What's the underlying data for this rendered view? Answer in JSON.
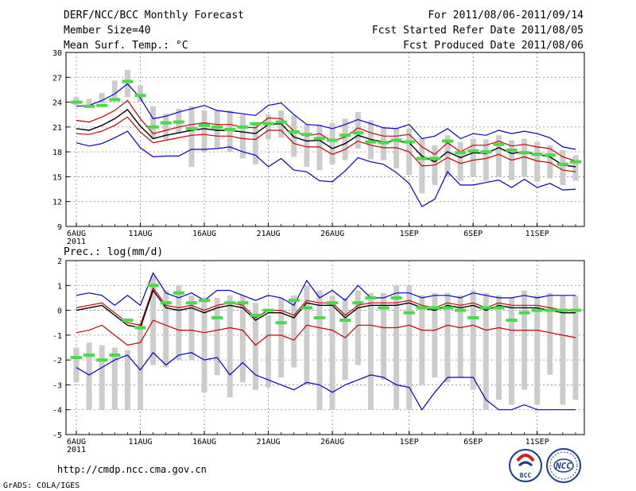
{
  "header": {
    "title": "DERF/NCC/BCC Monthly Forecast",
    "member_size": "Member Size=40",
    "variable": "Mean Surf. Temp.: °C",
    "period": "For 2011/08/06-2011/09/14",
    "started": "Fcst Started Refer Date 2011/08/05",
    "produced": "Fcst Produced Date 2011/08/06"
  },
  "footer": {
    "url": "http://cmdp.ncc.cma.gov.cn",
    "credit": "GrADS: COLA/IGES",
    "logo_bcc": "BCC",
    "logo_ncc": "NCC"
  },
  "colors": {
    "box": "#cccccc",
    "median": "#44dd44",
    "envelope": "#0000cc",
    "spread": "#cc0000",
    "mean": "#000000",
    "grid": "#888888"
  },
  "chart_data": [
    {
      "type": "line",
      "title": "Mean Surf. Temp.: °C",
      "ylim": [
        9,
        30
      ],
      "yticks": [
        "9",
        "12",
        "15",
        "18",
        "21",
        "24",
        "27",
        "30"
      ],
      "xticks": [
        {
          "day": 0,
          "label": "6AUG",
          "sub": "2011"
        },
        {
          "day": 5,
          "label": "11AUG"
        },
        {
          "day": 10,
          "label": "16AUG"
        },
        {
          "day": 15,
          "label": "21AUG"
        },
        {
          "day": 20,
          "label": "26AUG"
        },
        {
          "day": 26,
          "label": "1SEP"
        },
        {
          "day": 31,
          "label": "6SEP"
        },
        {
          "day": 36,
          "label": "11SEP"
        }
      ],
      "days": [
        0,
        1,
        2,
        3,
        4,
        5,
        6,
        7,
        8,
        9,
        10,
        11,
        12,
        13,
        14,
        15,
        16,
        17,
        18,
        19,
        20,
        21,
        22,
        23,
        24,
        25,
        26,
        27,
        28,
        29,
        30,
        31,
        32,
        33,
        34,
        35,
        36,
        37,
        38,
        39
      ],
      "max": [
        23.5,
        23.6,
        24.2,
        25.0,
        26.2,
        24.5,
        22.0,
        22.3,
        22.8,
        23.2,
        23.6,
        23.0,
        22.8,
        22.6,
        22.4,
        23.6,
        23.9,
        22.5,
        21.3,
        21.2,
        20.8,
        21.3,
        21.9,
        21.4,
        20.9,
        20.8,
        21.3,
        19.6,
        19.9,
        20.8,
        19.6,
        20.2,
        20.0,
        20.6,
        20.2,
        20.5,
        20.2,
        19.7,
        18.6,
        18.3
      ],
      "upper": [
        21.8,
        21.6,
        22.2,
        23.0,
        24.2,
        22.0,
        20.2,
        20.6,
        21.0,
        21.3,
        21.5,
        21.3,
        21.3,
        21.0,
        20.9,
        22.1,
        22.0,
        20.5,
        19.9,
        20.2,
        19.3,
        19.8,
        20.9,
        20.3,
        19.9,
        19.9,
        20.1,
        18.6,
        17.7,
        19.1,
        18.0,
        18.8,
        18.8,
        19.3,
        18.7,
        18.9,
        18.6,
        18.4,
        17.4,
        16.9
      ],
      "mean": [
        20.8,
        20.6,
        21.2,
        22.0,
        23.1,
        21.1,
        19.6,
        20.0,
        20.3,
        20.6,
        20.8,
        20.6,
        20.6,
        20.4,
        20.2,
        21.3,
        21.4,
        19.8,
        19.3,
        19.4,
        18.4,
        19.0,
        20.0,
        19.5,
        19.2,
        19.3,
        19.1,
        17.5,
        16.8,
        18.0,
        17.3,
        17.9,
        17.8,
        18.5,
        17.8,
        18.0,
        17.7,
        17.4,
        16.4,
        16.2
      ],
      "lower": [
        20.2,
        20.1,
        20.5,
        21.2,
        22.2,
        20.4,
        19.1,
        19.4,
        19.7,
        20.0,
        20.1,
        19.9,
        19.9,
        19.6,
        19.5,
        20.6,
        20.6,
        19.0,
        18.6,
        18.6,
        17.7,
        18.3,
        19.3,
        18.8,
        18.5,
        18.5,
        18.0,
        16.3,
        16.4,
        17.3,
        16.6,
        17.0,
        17.2,
        17.7,
        17.0,
        17.4,
        16.9,
        16.7,
        15.8,
        15.6
      ],
      "min": [
        19.1,
        18.7,
        19.0,
        19.7,
        20.5,
        18.5,
        17.4,
        17.5,
        17.5,
        18.3,
        18.3,
        18.4,
        18.6,
        18.0,
        17.6,
        16.2,
        17.2,
        15.8,
        15.6,
        14.5,
        14.4,
        15.7,
        17.3,
        16.8,
        16.5,
        15.5,
        14.2,
        11.4,
        12.3,
        15.6,
        14.0,
        14.0,
        14.3,
        14.6,
        13.7,
        14.7,
        13.7,
        14.2,
        13.4,
        13.5
      ],
      "box_hi": [
        24.6,
        24.4,
        25.1,
        26.6,
        27.9,
        26.0,
        23.5,
        22.6,
        23.2,
        23.5,
        23.0,
        23.0,
        23.0,
        22.5,
        21.5,
        22.5,
        23.0,
        22.4,
        21.3,
        21.3,
        21.5,
        22.0,
        22.8,
        21.8,
        21.0,
        20.8,
        20.8,
        19.6,
        18.8,
        20.0,
        19.2,
        19.6,
        19.5,
        20.0,
        19.4,
        19.6,
        19.2,
        18.8,
        18.2,
        17.6
      ],
      "box_lo": [
        23.6,
        23.5,
        23.9,
        24.5,
        24.6,
        24.0,
        19.5,
        19.5,
        20.2,
        16.2,
        18.0,
        18.5,
        18.0,
        17.2,
        16.5,
        19.5,
        19.7,
        17.4,
        16.2,
        15.8,
        16.5,
        17.0,
        18.4,
        17.1,
        17.0,
        16.0,
        15.2,
        13.0,
        14.0,
        15.0,
        14.5,
        15.0,
        14.5,
        15.0,
        14.6,
        15.0,
        14.4,
        14.8,
        14.0,
        14.5
      ],
      "median": [
        24.0,
        23.5,
        23.6,
        24.3,
        26.5,
        24.8,
        21.0,
        21.5,
        21.6,
        20.8,
        21.2,
        21.0,
        20.7,
        21.0,
        21.4,
        21.4,
        21.6,
        20.4,
        20.1,
        19.6,
        19.4,
        20.0,
        20.3,
        19.2,
        19.1,
        19.4,
        19.2,
        17.2,
        17.2,
        19.3,
        17.9,
        18.1,
        18.0,
        18.9,
        18.2,
        17.9,
        17.7,
        17.6,
        16.5,
        16.8
      ]
    },
    {
      "type": "line",
      "title": "Prec.: log(mm/d)",
      "ylim": [
        -5,
        2
      ],
      "yticks": [
        "-5",
        "-4",
        "-3",
        "-2",
        "-1",
        "0",
        "1",
        "2"
      ],
      "xticks": [
        {
          "day": 0,
          "label": "6AUG",
          "sub": "2011"
        },
        {
          "day": 5,
          "label": "11AUG"
        },
        {
          "day": 10,
          "label": "16AUG"
        },
        {
          "day": 15,
          "label": "21AUG"
        },
        {
          "day": 20,
          "label": "26AUG"
        },
        {
          "day": 26,
          "label": "1SEP"
        },
        {
          "day": 31,
          "label": "6SEP"
        },
        {
          "day": 36,
          "label": "11SEP"
        }
      ],
      "days": [
        0,
        1,
        2,
        3,
        4,
        5,
        6,
        7,
        8,
        9,
        10,
        11,
        12,
        13,
        14,
        15,
        16,
        17,
        18,
        19,
        20,
        21,
        22,
        23,
        24,
        25,
        26,
        27,
        28,
        29,
        30,
        31,
        32,
        33,
        34,
        35,
        36,
        37,
        38,
        39
      ],
      "max": [
        0.6,
        0.7,
        0.6,
        0.2,
        0.6,
        0.2,
        1.5,
        0.7,
        0.5,
        0.7,
        0.4,
        0.8,
        0.8,
        0.6,
        0.4,
        0.6,
        0.5,
        0.2,
        1.2,
        0.5,
        0.8,
        0.4,
        1.0,
        0.5,
        0.5,
        0.7,
        0.7,
        0.5,
        0.6,
        0.6,
        0.5,
        0.7,
        0.6,
        0.5,
        0.5,
        0.6,
        0.5,
        0.6,
        0.6,
        0.6
      ],
      "upper": [
        0.1,
        0.2,
        0.3,
        -0.1,
        -0.5,
        -0.6,
        0.9,
        0.2,
        0.1,
        0.2,
        0.0,
        0.2,
        0.3,
        0.2,
        -0.3,
        0.0,
        0.0,
        -0.2,
        0.4,
        0.3,
        0.3,
        -0.2,
        0.2,
        0.3,
        0.3,
        0.3,
        0.4,
        0.2,
        0.1,
        0.3,
        0.2,
        0.3,
        0.1,
        0.3,
        0.2,
        0.2,
        0.2,
        0.1,
        0.0,
        0.0
      ],
      "mean": [
        0.0,
        0.1,
        0.2,
        -0.2,
        -0.6,
        -0.7,
        0.8,
        0.1,
        0.0,
        0.1,
        -0.1,
        0.1,
        0.2,
        0.1,
        -0.4,
        -0.1,
        -0.1,
        -0.3,
        0.3,
        0.2,
        0.2,
        -0.3,
        0.1,
        0.2,
        0.2,
        0.2,
        0.3,
        0.1,
        0.0,
        0.2,
        0.1,
        0.2,
        0.0,
        0.2,
        0.1,
        0.1,
        0.1,
        0.0,
        -0.1,
        -0.1
      ],
      "lower": [
        -0.9,
        -0.8,
        -0.6,
        -1.0,
        -1.4,
        -1.3,
        -0.4,
        -0.6,
        -0.8,
        -0.8,
        -0.9,
        -0.8,
        -0.7,
        -0.8,
        -1.4,
        -1.0,
        -1.0,
        -1.2,
        -0.6,
        -0.7,
        -0.8,
        -1.1,
        -0.6,
        -0.6,
        -0.7,
        -0.7,
        -0.6,
        -0.8,
        -0.8,
        -0.6,
        -0.7,
        -0.6,
        -0.8,
        -0.7,
        -0.8,
        -0.8,
        -0.8,
        -0.9,
        -1.0,
        -1.1
      ],
      "min": [
        -2.3,
        -2.6,
        -2.3,
        -2.0,
        -1.8,
        -2.4,
        -1.7,
        -2.2,
        -1.8,
        -1.7,
        -2.0,
        -1.9,
        -2.6,
        -2.1,
        -2.6,
        -2.8,
        -3.0,
        -3.2,
        -2.9,
        -3.0,
        -3.3,
        -3.0,
        -2.8,
        -2.6,
        -2.7,
        -3.0,
        -3.1,
        -4.0,
        -3.3,
        -2.7,
        -2.7,
        -2.7,
        -3.6,
        -4.0,
        -4.0,
        -3.8,
        -4.0,
        -4.0,
        -4.0,
        -4.0
      ],
      "box_hi": [
        -1.5,
        -1.3,
        -1.4,
        -1.5,
        -1.6,
        -0.5,
        1.4,
        0.8,
        1.0,
        0.6,
        0.5,
        0.5,
        0.6,
        0.6,
        0.3,
        -0.2,
        0.5,
        0.6,
        1.0,
        0.8,
        0.6,
        0.5,
        0.8,
        0.7,
        0.7,
        1.0,
        1.0,
        0.6,
        0.7,
        0.7,
        0.6,
        0.8,
        0.7,
        0.6,
        0.5,
        0.8,
        0.6,
        0.7,
        0.6,
        0.6
      ],
      "box_lo": [
        -2.9,
        -4.0,
        -4.0,
        -4.0,
        -4.0,
        -4.0,
        -2.2,
        -2.3,
        -2.0,
        -2.0,
        -3.3,
        -2.6,
        -3.5,
        -2.9,
        -3.2,
        -3.1,
        -2.7,
        -2.3,
        -3.0,
        -4.0,
        -4.0,
        -2.8,
        -2.2,
        -4.0,
        -2.8,
        -4.0,
        -4.0,
        -3.0,
        -2.7,
        -2.9,
        -2.7,
        -3.2,
        -4.0,
        -3.6,
        -3.8,
        -3.2,
        -3.8,
        -2.6,
        -3.8,
        -3.6
      ],
      "median": [
        -1.9,
        -1.8,
        -2.0,
        -1.8,
        -0.4,
        -0.7,
        1.0,
        0.3,
        0.7,
        0.3,
        0.4,
        -0.3,
        0.3,
        0.3,
        -0.2,
        0.0,
        -0.5,
        0.4,
        0.1,
        -0.3,
        0.3,
        -0.4,
        0.3,
        0.5,
        0.1,
        0.5,
        -0.1,
        0.1,
        0.1,
        0.1,
        0.0,
        -0.3,
        0.1,
        0.1,
        -0.4,
        -0.1,
        0.0,
        0.0,
        0.0,
        0.0
      ]
    }
  ]
}
